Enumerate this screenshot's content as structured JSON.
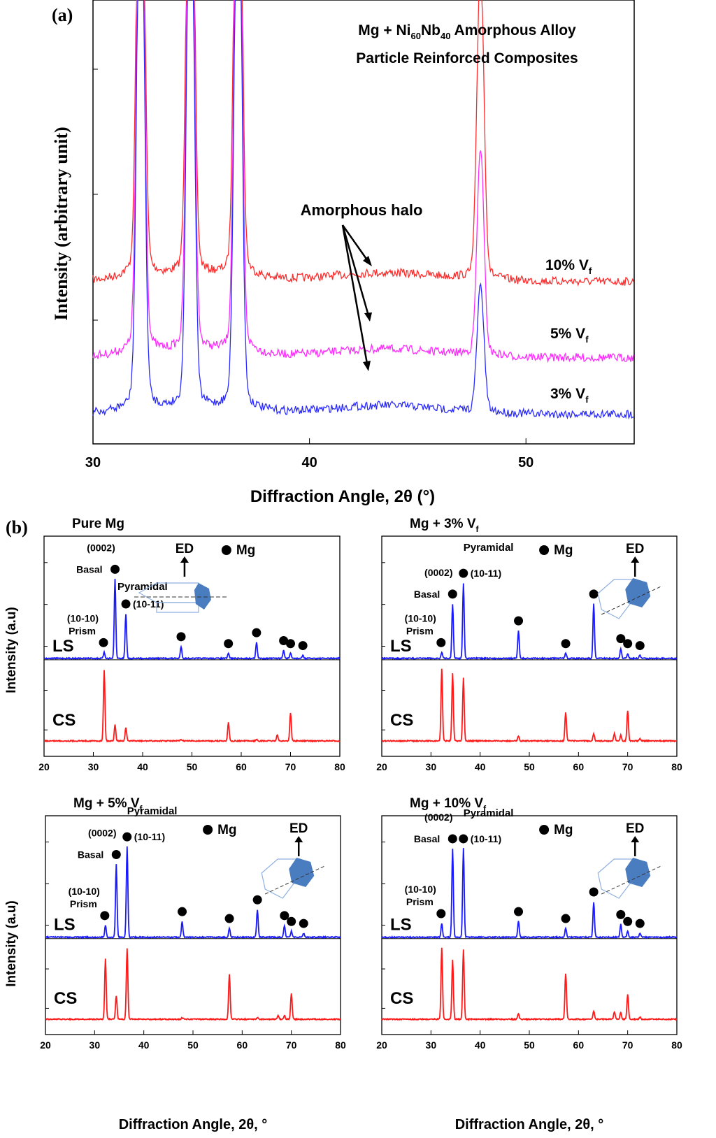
{
  "panel_a": {
    "label": "(a)",
    "title_line1": "Mg + Ni",
    "title_sub1": "60",
    "title_mid": "Nb",
    "title_sub2": "40",
    "title_end": " Amorphous Alloy",
    "title_line2": "Particle Reinforced Composites",
    "ylabel": "Intensity (arbitrary unit)",
    "xlabel": "Diffraction Angle, 2θ (°)",
    "annotation": "Amorphous halo",
    "colors": {
      "s10": "#ff2a2a",
      "s5": "#ff2aff",
      "s3": "#2a2aff"
    }
  },
  "panel_b": {
    "label": "(b)",
    "ylabel": "Intensity (a.u)",
    "xlabel": "Diffraction Angle, 2θ, °",
    "legend_mg": "Mg",
    "ed_label": "ED",
    "label_0002": "(0002)",
    "label_basal": "Basal",
    "label_pyr": "Pyramidal",
    "label_1011": "(10-11)",
    "label_1010": "(10-10)",
    "label_prism": "Prism",
    "label_ls": "LS",
    "label_cs": "CS",
    "subplot_titles": [
      "Pure Mg",
      "Mg + 3% V",
      "Mg + 5% V",
      "Mg + 10% V"
    ],
    "subplot_title_sub": [
      "",
      "f",
      "f",
      "f"
    ]
  },
  "chart_data": [
    {
      "type": "line",
      "panel": "a",
      "xlabel": "Diffraction Angle, 2θ (°)",
      "ylabel": "Intensity (arbitrary unit)",
      "xlim": [
        30,
        55
      ],
      "xticks": [
        30,
        40,
        50
      ],
      "series": [
        {
          "name": "10% V",
          "name_sub": "f",
          "peaks": [
            [
              32.2,
              "off-scale"
            ],
            [
              34.5,
              "off-scale"
            ],
            [
              36.7,
              "off-scale"
            ],
            [
              47.9,
              0.63
            ]
          ],
          "baseline": 0.35
        },
        {
          "name": "5% V",
          "name_sub": "f",
          "peaks": [
            [
              32.2,
              "off-scale"
            ],
            [
              34.5,
              "off-scale"
            ],
            [
              36.7,
              "off-scale"
            ],
            [
              47.9,
              0.41
            ]
          ],
          "baseline": 0.2
        },
        {
          "name": "3% V",
          "name_sub": "f",
          "peaks": [
            [
              32.2,
              "off-scale"
            ],
            [
              34.5,
              "off-scale"
            ],
            [
              36.7,
              "off-scale"
            ],
            [
              47.9,
              0.25
            ]
          ],
          "baseline": 0.1
        }
      ]
    },
    {
      "type": "line",
      "panel": "b",
      "xlim": [
        20,
        80
      ],
      "xticks": [
        20,
        30,
        40,
        50,
        60,
        70,
        80
      ],
      "subplots": [
        {
          "title": "Pure Mg",
          "LS": [
            [
              32.2,
              0.06
            ],
            [
              34.4,
              0.8
            ],
            [
              36.6,
              0.45
            ],
            [
              47.8,
              0.12
            ],
            [
              57.4,
              0.05
            ],
            [
              63.1,
              0.16
            ],
            [
              68.6,
              0.08
            ],
            [
              70.0,
              0.05
            ],
            [
              72.5,
              0.03
            ]
          ],
          "CS": [
            [
              32.2,
              0.95
            ],
            [
              34.4,
              0.22
            ],
            [
              36.6,
              0.18
            ],
            [
              47.8,
              0.02
            ],
            [
              57.4,
              0.25
            ],
            [
              63.1,
              0.02
            ],
            [
              67.3,
              0.08
            ],
            [
              70.0,
              0.38
            ]
          ]
        },
        {
          "title": "Mg + 3% V",
          "LS": [
            [
              32.2,
              0.06
            ],
            [
              34.4,
              0.55
            ],
            [
              36.6,
              0.76
            ],
            [
              47.8,
              0.28
            ],
            [
              57.4,
              0.05
            ],
            [
              63.1,
              0.55
            ],
            [
              68.6,
              0.1
            ],
            [
              70.0,
              0.05
            ],
            [
              72.5,
              0.03
            ]
          ],
          "CS": [
            [
              32.2,
              0.96
            ],
            [
              34.4,
              0.9
            ],
            [
              36.6,
              0.84
            ],
            [
              47.8,
              0.07
            ],
            [
              57.4,
              0.38
            ],
            [
              63.1,
              0.1
            ],
            [
              67.3,
              0.1
            ],
            [
              68.6,
              0.08
            ],
            [
              70.0,
              0.41
            ],
            [
              72.5,
              0.03
            ]
          ]
        },
        {
          "title": "Mg + 5% V",
          "LS": [
            [
              32.2,
              0.12
            ],
            [
              34.4,
              0.74
            ],
            [
              36.6,
              0.92
            ],
            [
              47.8,
              0.16
            ],
            [
              57.4,
              0.09
            ],
            [
              63.1,
              0.28
            ],
            [
              68.6,
              0.12
            ],
            [
              70.0,
              0.06
            ],
            [
              72.5,
              0.04
            ]
          ],
          "CS": [
            [
              32.2,
              0.81
            ],
            [
              34.4,
              0.32
            ],
            [
              36.6,
              0.95
            ],
            [
              47.8,
              0.02
            ],
            [
              57.4,
              0.6
            ],
            [
              63.1,
              0.02
            ],
            [
              67.3,
              0.05
            ],
            [
              68.6,
              0.05
            ],
            [
              70.0,
              0.35
            ]
          ]
        },
        {
          "title": "Mg + 10% V",
          "LS": [
            [
              32.2,
              0.14
            ],
            [
              34.4,
              0.9
            ],
            [
              36.6,
              0.9
            ],
            [
              47.8,
              0.16
            ],
            [
              57.4,
              0.09
            ],
            [
              63.1,
              0.36
            ],
            [
              68.6,
              0.13
            ],
            [
              70.0,
              0.06
            ],
            [
              72.5,
              0.04
            ]
          ],
          "CS": [
            [
              32.2,
              0.96
            ],
            [
              34.4,
              0.8
            ],
            [
              36.6,
              0.93
            ],
            [
              47.8,
              0.08
            ],
            [
              57.4,
              0.62
            ],
            [
              63.1,
              0.11
            ],
            [
              67.3,
              0.1
            ],
            [
              68.6,
              0.09
            ],
            [
              70.0,
              0.33
            ],
            [
              72.5,
              0.03
            ]
          ]
        }
      ]
    }
  ]
}
